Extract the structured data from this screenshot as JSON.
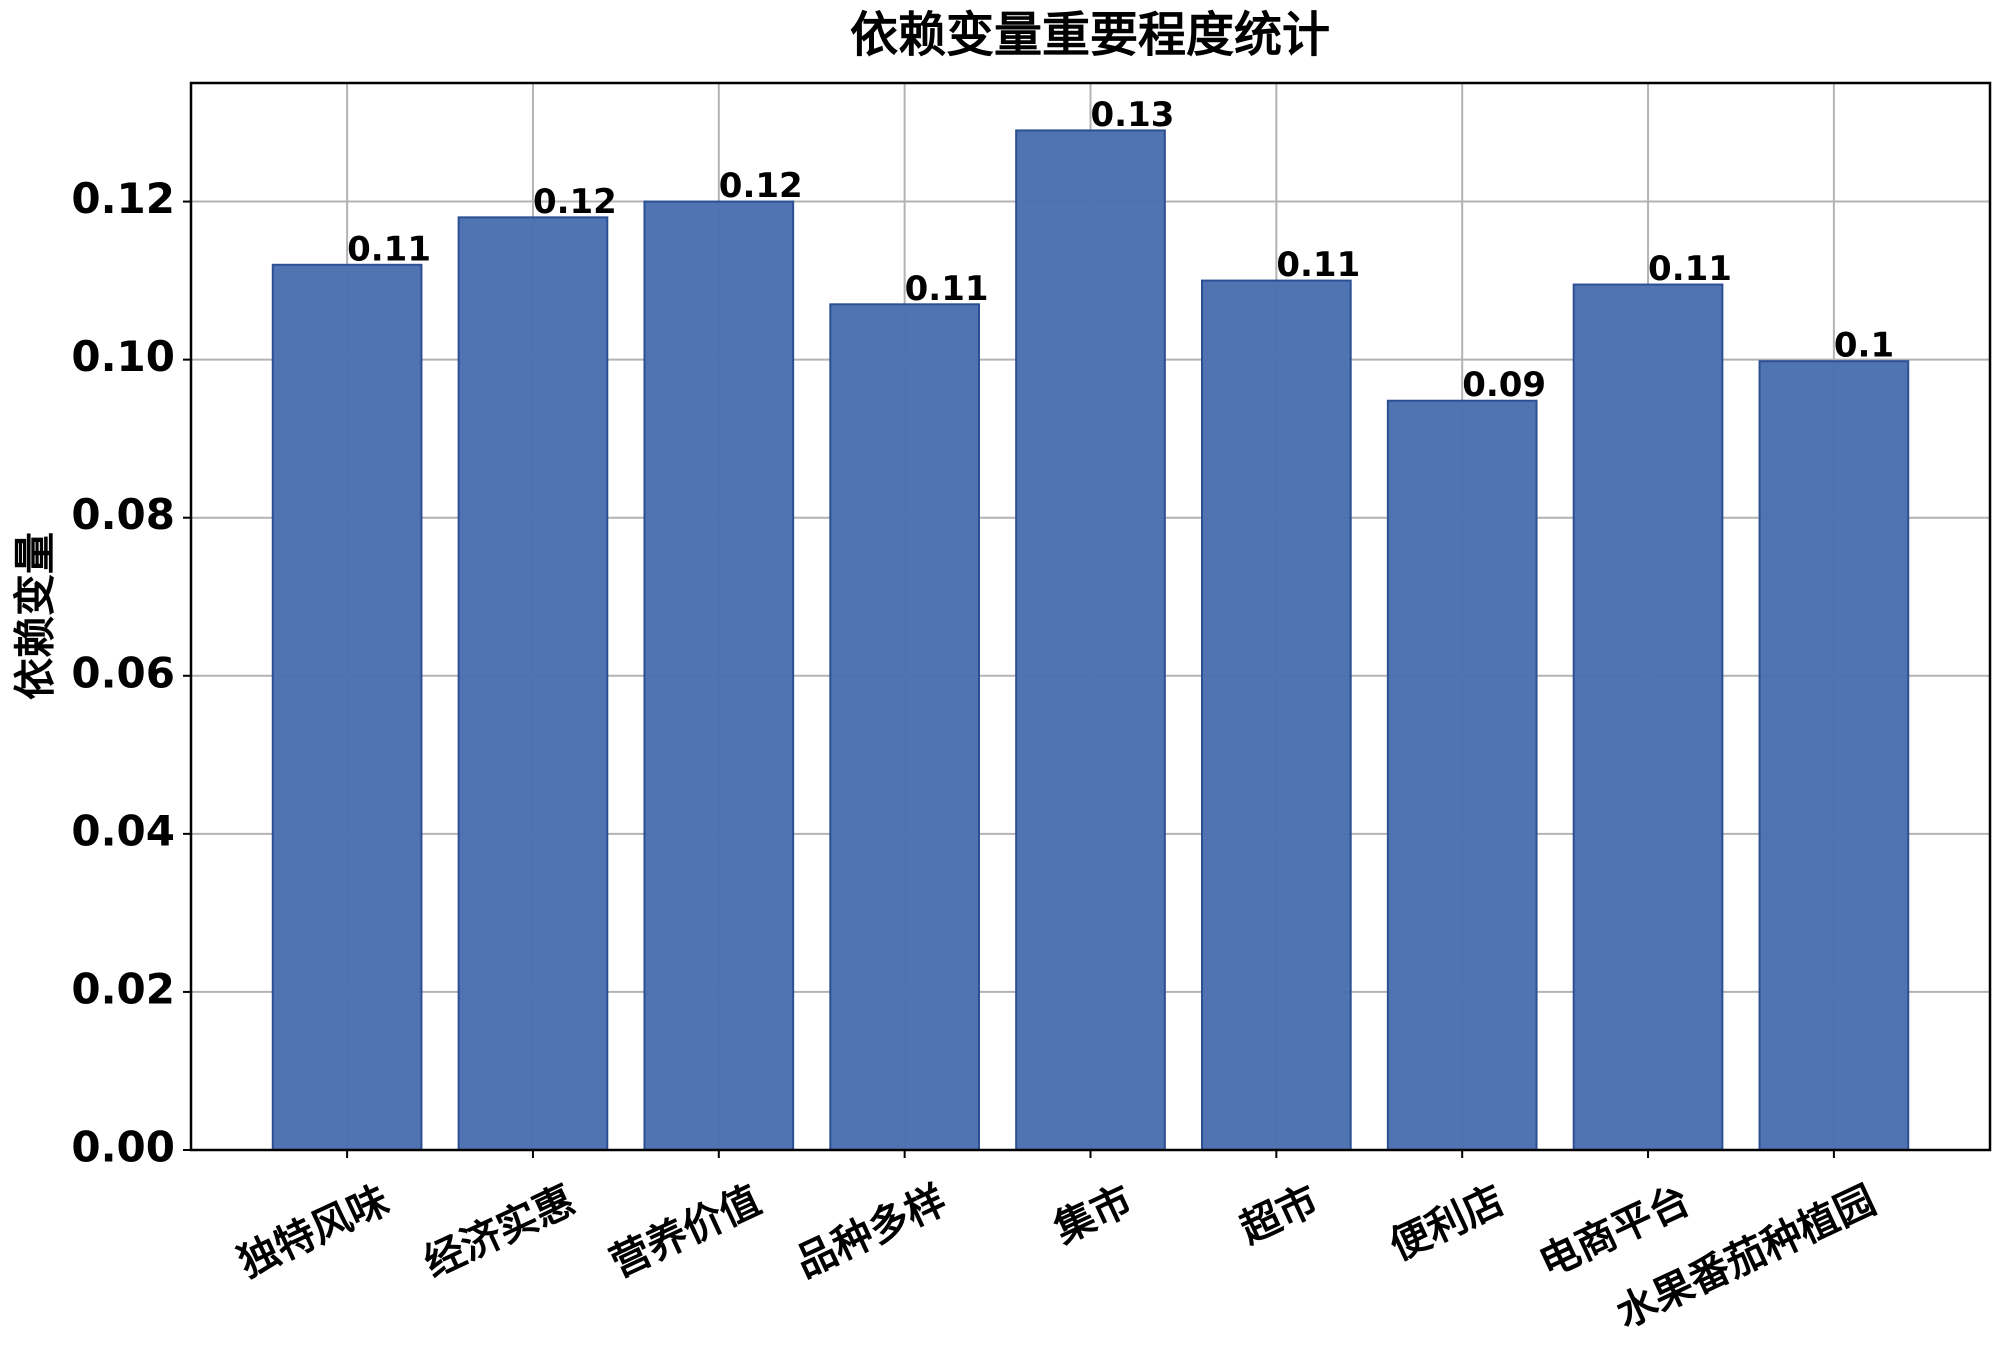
{
  "chart_data": {
    "type": "bar",
    "title": "依赖变量重要程度统计",
    "y_label": "依赖变量",
    "categories": [
      "独特风味",
      "经济实惠",
      "营养价值",
      "品种多样",
      "集市",
      "超市",
      "便利店",
      "电商平台",
      "水果番茄种植园"
    ],
    "values": [
      0.112,
      0.118,
      0.12,
      0.107,
      0.129,
      0.11,
      0.0948,
      0.1095,
      0.0998
    ],
    "value_labels": [
      "0.11",
      "0.12",
      "0.12",
      "0.11",
      "0.13",
      "0.11",
      "0.09",
      "0.11",
      "0.1"
    ],
    "color": "#4a6fae",
    "edge_color": "#2c4f94",
    "ylim": [
      0,
      0.135
    ],
    "yticks": [
      {
        "value": 0,
        "label": "0.00"
      },
      {
        "value": 0.02,
        "label": "0.02"
      },
      {
        "value": 0.04,
        "label": "0.04"
      },
      {
        "value": 0.06,
        "label": "0.06"
      },
      {
        "value": 0.08,
        "label": "0.08"
      },
      {
        "value": 0.1,
        "label": "0.10"
      },
      {
        "value": 0.12,
        "label": "0.12"
      }
    ],
    "grid": true
  }
}
